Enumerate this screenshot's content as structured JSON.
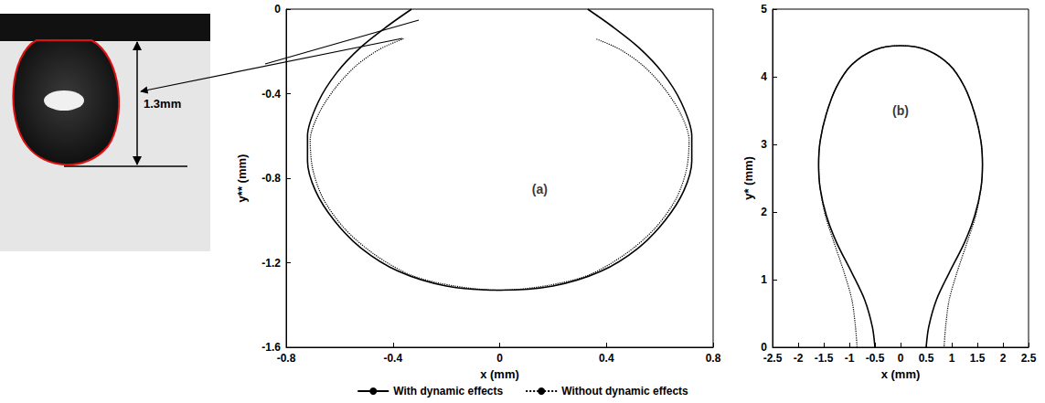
{
  "photo": {
    "label": "1.3mm"
  },
  "chart_data": [
    {
      "type": "line",
      "xlabel": "x (mm)",
      "ylabel": "y** (mm)",
      "xlim": [
        -0.8,
        0.8
      ],
      "xticks": [
        -0.8,
        -0.4,
        0,
        0.4,
        0.8
      ],
      "ylim": [
        -1.6,
        0
      ],
      "yticks": [
        -1.6,
        -1.2,
        -0.8,
        -0.4,
        0
      ],
      "annotations": [
        {
          "text": "(a)",
          "x": 0.15,
          "y": -0.85
        }
      ],
      "legend": "bottom",
      "series": [
        {
          "name": "With dynamic effects",
          "color": "#000000",
          "line_style": "solid",
          "x": [
            -0.33,
            -0.42,
            -0.52,
            -0.61,
            -0.68,
            -0.72,
            -0.72,
            -0.69,
            -0.62,
            -0.52,
            -0.38,
            -0.2,
            0,
            0.2,
            0.38,
            0.52,
            0.62,
            0.69,
            0.72,
            0.72,
            0.68,
            0.61,
            0.52,
            0.42,
            0.33
          ],
          "values": [
            0,
            -0.08,
            -0.18,
            -0.3,
            -0.44,
            -0.6,
            -0.72,
            -0.86,
            -1.0,
            -1.13,
            -1.24,
            -1.31,
            -1.33,
            -1.31,
            -1.24,
            -1.13,
            -1.0,
            -0.86,
            -0.72,
            -0.6,
            -0.44,
            -0.3,
            -0.18,
            -0.08,
            0
          ]
        },
        {
          "name": "Without dynamic effects",
          "color": "#000000",
          "line_style": "dotted",
          "x": [
            -0.36,
            -0.45,
            -0.54,
            -0.62,
            -0.68,
            -0.71,
            -0.7,
            -0.66,
            -0.58,
            -0.47,
            -0.33,
            -0.17,
            0,
            0.17,
            0.33,
            0.47,
            0.58,
            0.66,
            0.7,
            0.71,
            0.68,
            0.62,
            0.54,
            0.45,
            0.36
          ],
          "values": [
            -0.14,
            -0.19,
            -0.27,
            -0.38,
            -0.5,
            -0.62,
            -0.76,
            -0.9,
            -1.04,
            -1.16,
            -1.26,
            -1.31,
            -1.33,
            -1.31,
            -1.26,
            -1.16,
            -1.04,
            -0.9,
            -0.76,
            -0.62,
            -0.5,
            -0.38,
            -0.27,
            -0.19,
            -0.14
          ]
        }
      ]
    },
    {
      "type": "line",
      "xlabel": "x (mm)",
      "ylabel": "y* (mm)",
      "xlim": [
        -2.5,
        2.5
      ],
      "xticks": [
        -2.5,
        -2,
        -1.5,
        -1,
        -0.5,
        0,
        0.5,
        1,
        1.5,
        2,
        2.5
      ],
      "ylim": [
        0,
        5
      ],
      "yticks": [
        0,
        1,
        2,
        3,
        4,
        5
      ],
      "annotations": [
        {
          "text": "(b)",
          "x": 0,
          "y": 3.5
        }
      ],
      "series": [
        {
          "name": "With dynamic effects",
          "color": "#000000",
          "line_style": "solid",
          "x": [
            -0.5,
            -0.55,
            -0.7,
            -0.95,
            -1.25,
            -1.45,
            -1.57,
            -1.6,
            -1.57,
            -1.45,
            -1.25,
            -0.95,
            -0.5,
            0,
            0.5,
            0.95,
            1.25,
            1.45,
            1.57,
            1.6,
            1.57,
            1.45,
            1.25,
            0.95,
            0.7,
            0.55,
            0.5
          ],
          "values": [
            0,
            0.3,
            0.7,
            1.1,
            1.55,
            1.95,
            2.35,
            2.7,
            3.05,
            3.45,
            3.85,
            4.18,
            4.4,
            4.46,
            4.4,
            4.18,
            3.85,
            3.45,
            3.05,
            2.7,
            2.35,
            1.95,
            1.55,
            1.1,
            0.7,
            0.3,
            0
          ]
        },
        {
          "name": "Without dynamic effects",
          "color": "#000000",
          "line_style": "dotted",
          "x": [
            -0.85,
            -0.88,
            -0.95,
            -1.1,
            -1.3,
            -1.47,
            -1.57,
            -1.6,
            -1.57,
            -1.45,
            -1.25,
            -0.95,
            -0.5,
            0,
            0.5,
            0.95,
            1.25,
            1.45,
            1.57,
            1.6,
            1.57,
            1.47,
            1.3,
            1.1,
            0.95,
            0.88,
            0.85
          ],
          "values": [
            0,
            0.3,
            0.7,
            1.1,
            1.55,
            1.95,
            2.35,
            2.7,
            3.05,
            3.45,
            3.85,
            4.18,
            4.4,
            4.46,
            4.4,
            4.18,
            3.85,
            3.45,
            3.05,
            2.7,
            2.35,
            1.95,
            1.55,
            1.1,
            0.7,
            0.3,
            0
          ]
        }
      ]
    }
  ]
}
